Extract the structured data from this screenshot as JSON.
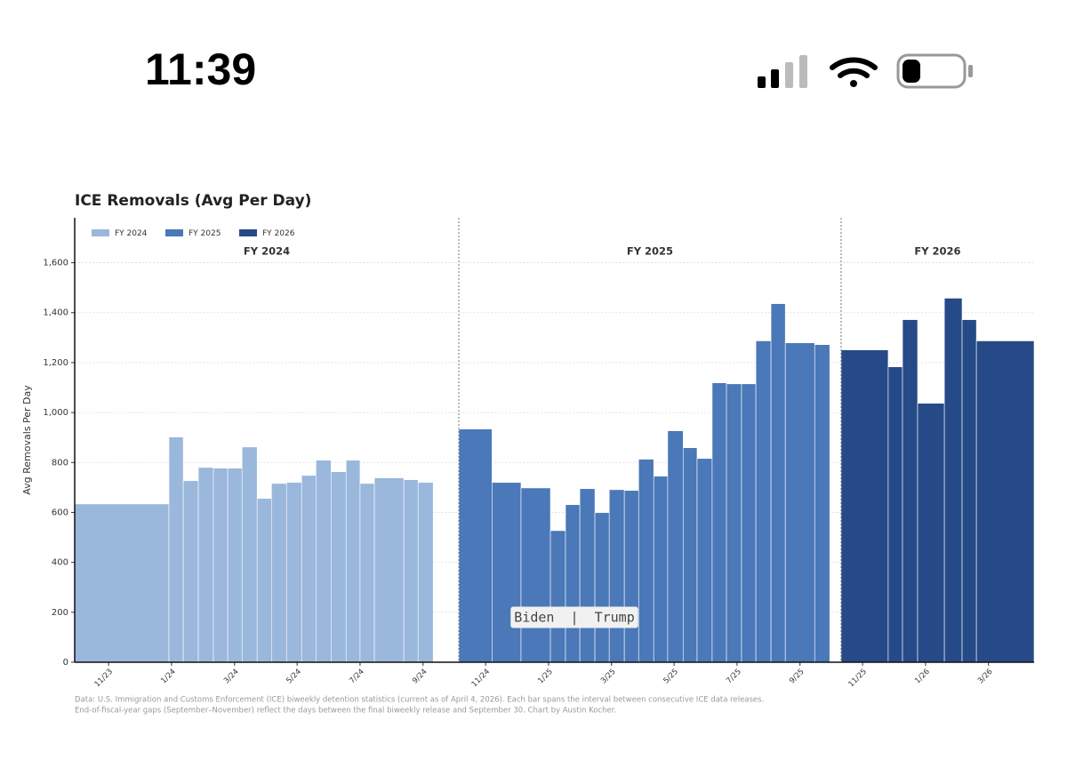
{
  "status_bar": {
    "time": "11:39"
  },
  "chart_data": {
    "type": "bar",
    "title": "ICE Removals (Avg Per Day)",
    "y_label": "Avg Removals Per Day",
    "section_labels": [
      "FY 2024",
      "FY 2025",
      "FY 2026"
    ],
    "dividers": [
      2024.762,
      2025.776
    ],
    "annotation": "Biden  |  Trump",
    "footnote": [
      "Data: U.S. Immigration and Customs Enforcement (ICE) biweekly detention statistics (current as of April 4, 2026). Each bar spans the interval between consecutive ICE data releases.",
      "End-of-fiscal-year gaps (September–November) reflect the days between the final biweekly release and September 30. Chart by Austin Kocher."
    ],
    "legend": "upper left",
    "grid": true,
    "xlim": [
      2023.743,
      2026.288
    ],
    "xticks": [
      {
        "value": 2023.833,
        "label": "11/23"
      },
      {
        "value": 2024.0,
        "label": "1/24"
      },
      {
        "value": 2024.167,
        "label": "3/24"
      },
      {
        "value": 2024.333,
        "label": "5/24"
      },
      {
        "value": 2024.5,
        "label": "7/24"
      },
      {
        "value": 2024.667,
        "label": "9/24"
      },
      {
        "value": 2024.833,
        "label": "11/24"
      },
      {
        "value": 2025.0,
        "label": "1/25"
      },
      {
        "value": 2025.167,
        "label": "3/25"
      },
      {
        "value": 2025.333,
        "label": "5/25"
      },
      {
        "value": 2025.5,
        "label": "7/25"
      },
      {
        "value": 2025.667,
        "label": "9/25"
      },
      {
        "value": 2025.833,
        "label": "11/25"
      },
      {
        "value": 2026.0,
        "label": "1/26"
      },
      {
        "value": 2026.167,
        "label": "3/26"
      }
    ],
    "ylim": [
      0,
      1780
    ],
    "yticks": [
      0,
      200,
      400,
      600,
      800,
      {
        "value": 1000,
        "label": "1,000"
      },
      {
        "value": 1200,
        "label": "1,200"
      },
      {
        "value": 1400,
        "label": "1,400"
      },
      {
        "value": 1600,
        "label": "1,600"
      }
    ],
    "series": [
      {
        "name": "FY 2024",
        "color": "#9ab7dc",
        "bins": [
          2023.743,
          2023.993,
          2024.031,
          2024.071,
          2024.111,
          2024.149,
          2024.187,
          2024.227,
          2024.265,
          2024.305,
          2024.345,
          2024.383,
          2024.423,
          2024.463,
          2024.5,
          2024.538,
          2024.616,
          2024.654,
          2024.694
        ],
        "values": [
          634,
          902,
          727,
          780,
          777,
          777,
          862,
          656,
          716,
          720,
          748,
          809,
          763,
          809,
          716,
          738,
          731,
          720
        ]
      },
      {
        "name": "FY 2025",
        "color": "#4a78b8",
        "bins": [
          2024.762,
          2024.85,
          2024.927,
          2025.005,
          2025.045,
          2025.083,
          2025.123,
          2025.161,
          2025.201,
          2025.239,
          2025.279,
          2025.316,
          2025.357,
          2025.394,
          2025.434,
          2025.472,
          2025.512,
          2025.55,
          2025.59,
          2025.628,
          2025.706,
          2025.746
        ],
        "values": [
          934,
          720,
          698,
          527,
          631,
          695,
          599,
          691,
          688,
          813,
          745,
          927,
          859,
          816,
          1119,
          1115,
          1115,
          1287,
          1436,
          1279,
          1272
        ]
      },
      {
        "name": "FY 2026",
        "color": "#264a87",
        "bins": [
          2025.776,
          2025.901,
          2025.939,
          2025.979,
          2026.05,
          2026.097,
          2026.135,
          2026.288
        ],
        "values": [
          1251,
          1183,
          1372,
          1037,
          1458,
          1372,
          1287
        ]
      }
    ]
  }
}
